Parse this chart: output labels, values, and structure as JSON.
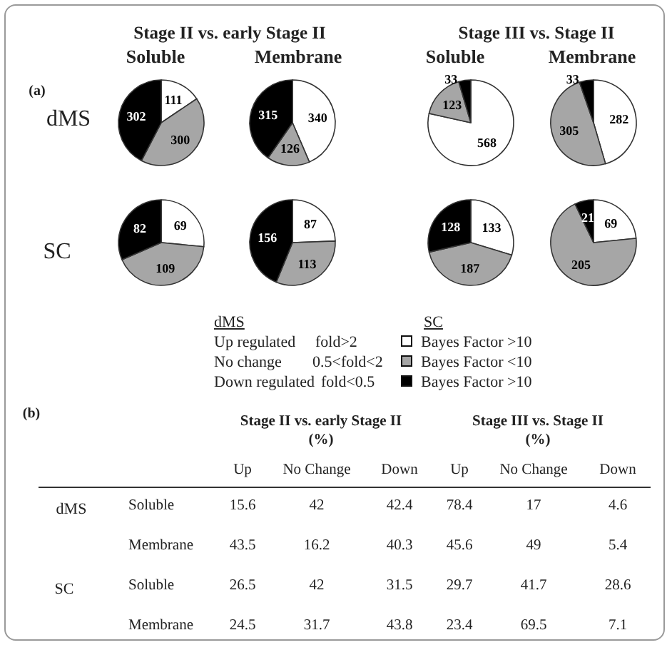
{
  "chart_data": [
    {
      "type": "other",
      "annotations": [
        "(a)",
        "Stage II vs. early Stage II",
        "Stage III vs. Stage II",
        "Soluble",
        "Membrane",
        "Soluble",
        "Membrane",
        "dMS",
        "SC"
      ]
    },
    {
      "type": "pie",
      "categories": [
        null,
        null,
        null
      ],
      "values": [
        111,
        300,
        302
      ],
      "colors": [
        "#ffffff",
        "#a6a6a6",
        "#000000"
      ],
      "data_labels": true
    },
    {
      "type": "pie",
      "categories": [
        null,
        null,
        null
      ],
      "values": [
        340,
        126,
        315
      ],
      "colors": [
        "#ffffff",
        "#a6a6a6",
        "#000000"
      ],
      "data_labels": true
    },
    {
      "type": "pie",
      "categories": [
        null,
        null,
        null
      ],
      "values": [
        568,
        123,
        33
      ],
      "colors": [
        "#ffffff",
        "#a6a6a6",
        "#000000"
      ],
      "data_labels": true
    },
    {
      "type": "pie",
      "categories": [
        null,
        null,
        null
      ],
      "values": [
        282,
        305,
        33
      ],
      "colors": [
        "#ffffff",
        "#a6a6a6",
        "#000000"
      ],
      "data_labels": true
    },
    {
      "type": "pie",
      "categories": [
        null,
        null,
        null
      ],
      "values": [
        69,
        109,
        82
      ],
      "colors": [
        "#ffffff",
        "#a6a6a6",
        "#000000"
      ],
      "data_labels": true
    },
    {
      "type": "pie",
      "categories": [
        null,
        null,
        null
      ],
      "values": [
        87,
        113,
        156
      ],
      "colors": [
        "#ffffff",
        "#a6a6a6",
        "#000000"
      ],
      "data_labels": true
    },
    {
      "type": "pie",
      "categories": [
        null,
        null,
        null
      ],
      "values": [
        133,
        187,
        128
      ],
      "colors": [
        "#ffffff",
        "#a6a6a6",
        "#000000"
      ],
      "data_labels": true
    },
    {
      "type": "pie",
      "categories": [
        null,
        null,
        null
      ],
      "values": [
        69,
        205,
        21
      ],
      "colors": [
        "#ffffff",
        "#a6a6a6",
        "#000000"
      ],
      "data_labels": true
    },
    {
      "type": "other",
      "annotations": [
        "dMS",
        "Up regulated",
        "fold>2",
        "No change",
        "0.5<fold<2",
        "Down regulated",
        "fold<0.5",
        "SC",
        "Bayes Factor >10",
        "Bayes Factor <10",
        "Bayes Factor >10"
      ],
      "colors": [
        "#ffffff",
        "#a6a6a6",
        "#000000"
      ]
    },
    {
      "type": "other",
      "categories": [
        "Up",
        "No Change",
        "Down",
        "Up",
        "No Change",
        "Down"
      ],
      "y_categories": [
        "Soluble",
        "Membrane",
        "Soluble",
        "Membrane"
      ],
      "annotations": [
        "(b)",
        "Stage II vs. early Stage II",
        "(%)",
        "Stage III vs. Stage II",
        "(%)",
        "dMS",
        "SC",
        "15.6",
        "42",
        "42.4",
        "78.4",
        "17",
        "4.6",
        "43.5",
        "16.2",
        "40.3",
        "45.6",
        "49",
        "5.4",
        "26.5",
        "42",
        "31.5",
        "29.7",
        "41.7",
        "28.6",
        "24.5",
        "31.7",
        "43.8",
        "23.4",
        "69.5",
        "7.1"
      ]
    }
  ]
}
